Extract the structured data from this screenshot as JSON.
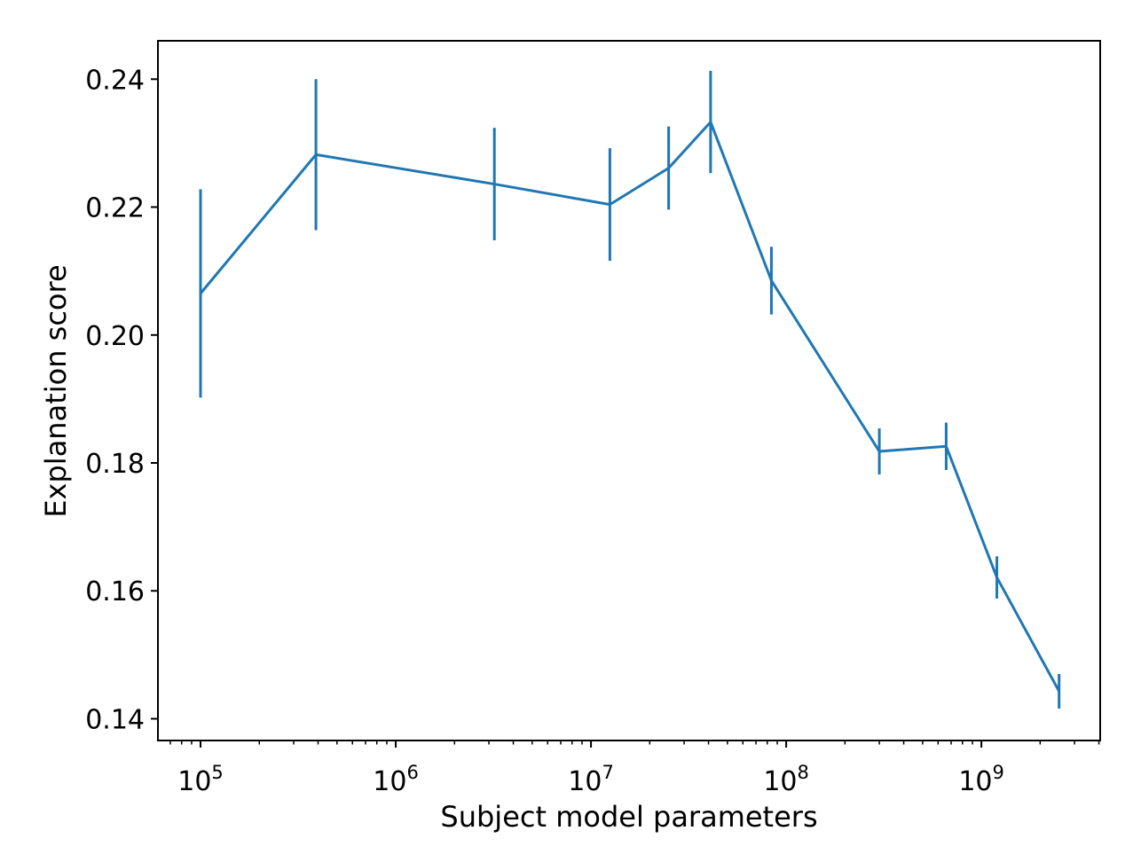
{
  "figure": {
    "background": "#ffffff",
    "axis_color": "#000000"
  },
  "chart_data": {
    "type": "line",
    "title": "",
    "xlabel": "Subject model parameters",
    "ylabel": "Explanation score",
    "xscale": "log",
    "yscale": "linear",
    "grid": false,
    "legend": "none",
    "xlim_log10": [
      4.7817,
      9.6085
    ],
    "ylim": [
      0.1366,
      0.246
    ],
    "xtick_exponents": [
      5,
      6,
      7,
      8,
      9
    ],
    "xtick_base": "10",
    "minor_tick_decades": [
      4,
      5,
      6,
      7,
      8,
      9
    ],
    "yticks": [
      0.14,
      0.16,
      0.18,
      0.2,
      0.22,
      0.24
    ],
    "series": [
      {
        "name": "explanation-score",
        "color": "#1f77b4",
        "marker": "none",
        "error_bars": "vertical",
        "x": [
          100000,
          390000,
          3200000,
          12500000,
          25000000,
          41000000,
          84000000,
          300000000,
          660000000,
          1200000000,
          2500000000
        ],
        "y": [
          0.2065,
          0.2282,
          0.2236,
          0.2204,
          0.2261,
          0.2333,
          0.2085,
          0.1818,
          0.1826,
          0.1621,
          0.1443
        ],
        "yerr": [
          0.0163,
          0.0118,
          0.0088,
          0.0088,
          0.0065,
          0.008,
          0.0053,
          0.0036,
          0.0037,
          0.0033,
          0.0027
        ]
      }
    ]
  }
}
